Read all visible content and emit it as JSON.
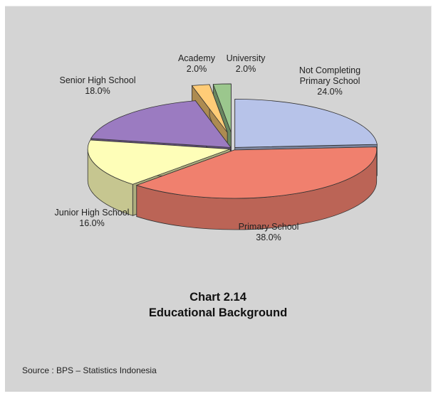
{
  "chart_data": {
    "type": "pie",
    "title_line1": "Chart 2.14",
    "title_line2": "Educational Background",
    "slices": [
      {
        "label_lines": [
          "Not Completing",
          "Primary School"
        ],
        "value_text": "24.0%",
        "value": 24.0,
        "color": "#b7c3e9",
        "exploded": false
      },
      {
        "label_lines": [
          "Primary School"
        ],
        "value_text": "38.0%",
        "value": 38.0,
        "color": "#f0806e",
        "exploded": false
      },
      {
        "label_lines": [
          "Junior High School"
        ],
        "value_text": "16.0%",
        "value": 16.0,
        "color": "#fefeb8",
        "exploded": false
      },
      {
        "label_lines": [
          "Senior High School"
        ],
        "value_text": "18.0%",
        "value": 18.0,
        "color": "#9b7bc1",
        "exploded": false
      },
      {
        "label_lines": [
          "Academy"
        ],
        "value_text": "2.0%",
        "value": 2.0,
        "color": "#ffcc77",
        "exploded": true
      },
      {
        "label_lines": [
          "University"
        ],
        "value_text": "2.0%",
        "value": 2.0,
        "color": "#9bc78d",
        "exploded": true
      }
    ],
    "source": "Source : BPS – Statistics Indonesia"
  }
}
